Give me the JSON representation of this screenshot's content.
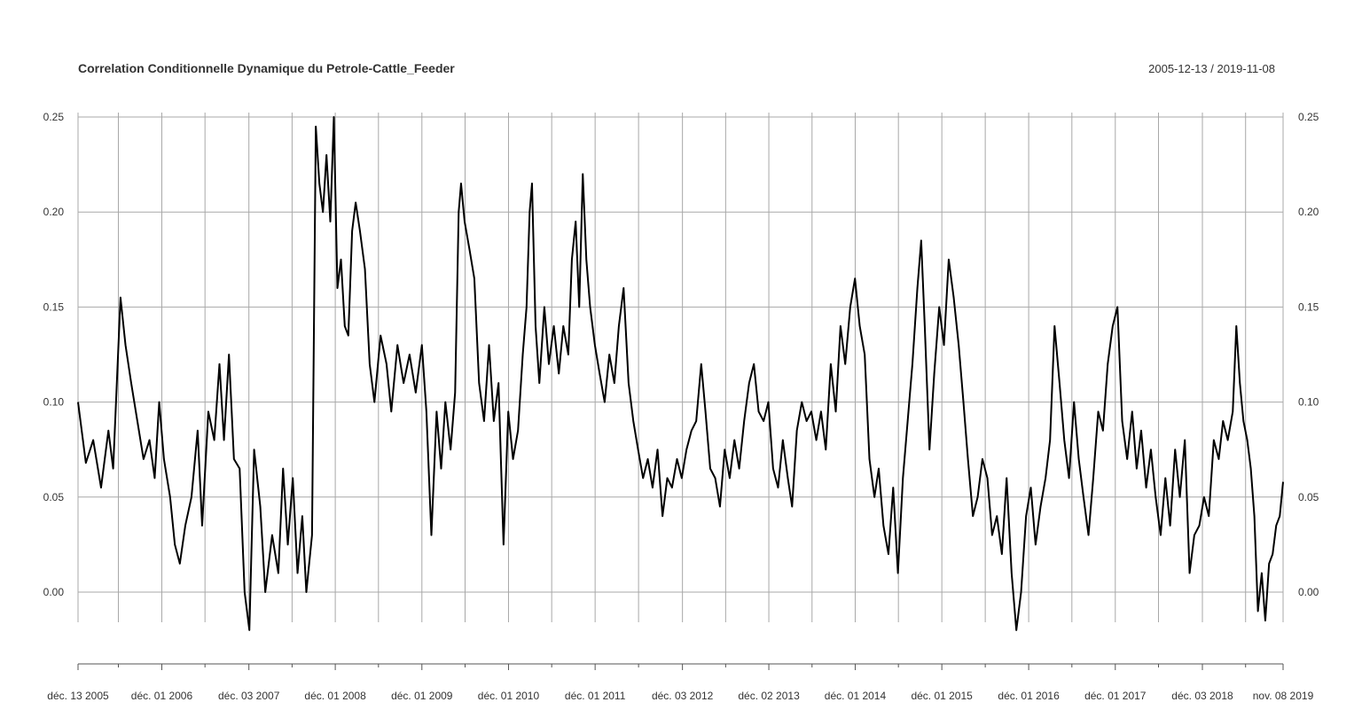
{
  "chart_data": {
    "type": "line",
    "title": "Correlation Conditionnelle Dynamique du Petrole-Cattle_Feeder",
    "date_range": "2005-12-13 / 2019-11-08",
    "xlabel": "",
    "ylabel": "",
    "x_range": [
      "2005-12-13",
      "2019-11-08"
    ],
    "ylim": [
      -0.02,
      0.25
    ],
    "y_ticks": [
      "0.25",
      "0.20",
      "0.15",
      "0.10",
      "0.05",
      "0.00"
    ],
    "y_tick_values": [
      0.25,
      0.2,
      0.15,
      0.1,
      0.05,
      0.0
    ],
    "x_ticks": [
      {
        "date": "2005-12-13",
        "label": "déc. 13 2005"
      },
      {
        "date": "2006-12-01",
        "label": "déc. 01 2006"
      },
      {
        "date": "2007-12-03",
        "label": "déc. 03 2007"
      },
      {
        "date": "2008-12-01",
        "label": "déc. 01 2008"
      },
      {
        "date": "2009-12-01",
        "label": "déc. 01 2009"
      },
      {
        "date": "2010-12-01",
        "label": "déc. 01 2010"
      },
      {
        "date": "2011-12-01",
        "label": "déc. 01 2011"
      },
      {
        "date": "2012-12-03",
        "label": "déc. 03 2012"
      },
      {
        "date": "2013-12-02",
        "label": "déc. 02 2013"
      },
      {
        "date": "2014-12-01",
        "label": "déc. 01 2014"
      },
      {
        "date": "2015-12-01",
        "label": "déc. 01 2015"
      },
      {
        "date": "2016-12-01",
        "label": "déc. 01 2016"
      },
      {
        "date": "2017-12-01",
        "label": "déc. 01 2017"
      },
      {
        "date": "2018-12-03",
        "label": "déc. 03 2018"
      },
      {
        "date": "2019-11-08",
        "label": "nov. 08 2019"
      }
    ],
    "minor_x_gridlines": [
      "2006-06-01",
      "2007-06-01",
      "2008-06-02",
      "2009-06-01",
      "2010-06-01",
      "2011-06-01",
      "2012-06-01",
      "2013-06-03",
      "2014-06-02",
      "2015-06-01",
      "2016-06-01",
      "2017-06-01",
      "2018-06-01",
      "2019-06-03"
    ],
    "grid": true,
    "line_color": "#000000",
    "series": [
      {
        "points": [
          [
            "2005-12-13",
            0.1
          ],
          [
            "2006-01-15",
            0.068
          ],
          [
            "2006-02-15",
            0.08
          ],
          [
            "2006-03-20",
            0.055
          ],
          [
            "2006-04-20",
            0.085
          ],
          [
            "2006-05-10",
            0.065
          ],
          [
            "2006-06-10",
            0.155
          ],
          [
            "2006-07-01",
            0.13
          ],
          [
            "2006-07-25",
            0.11
          ],
          [
            "2006-08-20",
            0.09
          ],
          [
            "2006-09-15",
            0.07
          ],
          [
            "2006-10-10",
            0.08
          ],
          [
            "2006-11-01",
            0.06
          ],
          [
            "2006-11-20",
            0.1
          ],
          [
            "2006-12-10",
            0.07
          ],
          [
            "2007-01-05",
            0.05
          ],
          [
            "2007-01-25",
            0.025
          ],
          [
            "2007-02-15",
            0.015
          ],
          [
            "2007-03-10",
            0.035
          ],
          [
            "2007-04-05",
            0.05
          ],
          [
            "2007-05-01",
            0.085
          ],
          [
            "2007-05-20",
            0.035
          ],
          [
            "2007-06-15",
            0.095
          ],
          [
            "2007-07-10",
            0.08
          ],
          [
            "2007-08-01",
            0.12
          ],
          [
            "2007-08-20",
            0.08
          ],
          [
            "2007-09-10",
            0.125
          ],
          [
            "2007-10-01",
            0.07
          ],
          [
            "2007-10-25",
            0.065
          ],
          [
            "2007-11-15",
            0.0
          ],
          [
            "2007-12-05",
            -0.02
          ],
          [
            "2007-12-25",
            0.075
          ],
          [
            "2008-01-20",
            0.045
          ],
          [
            "2008-02-10",
            0.0
          ],
          [
            "2008-03-10",
            0.03
          ],
          [
            "2008-04-05",
            0.01
          ],
          [
            "2008-04-25",
            0.065
          ],
          [
            "2008-05-15",
            0.025
          ],
          [
            "2008-06-05",
            0.06
          ],
          [
            "2008-06-25",
            0.01
          ],
          [
            "2008-07-15",
            0.04
          ],
          [
            "2008-08-01",
            0.0
          ],
          [
            "2008-08-25",
            0.03
          ],
          [
            "2008-09-10",
            0.245
          ],
          [
            "2008-09-25",
            0.215
          ],
          [
            "2008-10-10",
            0.2
          ],
          [
            "2008-10-25",
            0.23
          ],
          [
            "2008-11-10",
            0.195
          ],
          [
            "2008-11-25",
            0.25
          ],
          [
            "2008-12-10",
            0.16
          ],
          [
            "2008-12-25",
            0.175
          ],
          [
            "2009-01-10",
            0.14
          ],
          [
            "2009-01-25",
            0.135
          ],
          [
            "2009-02-10",
            0.19
          ],
          [
            "2009-02-25",
            0.205
          ],
          [
            "2009-03-15",
            0.19
          ],
          [
            "2009-04-05",
            0.17
          ],
          [
            "2009-04-25",
            0.12
          ],
          [
            "2009-05-15",
            0.1
          ],
          [
            "2009-06-10",
            0.135
          ],
          [
            "2009-07-05",
            0.12
          ],
          [
            "2009-07-25",
            0.095
          ],
          [
            "2009-08-20",
            0.13
          ],
          [
            "2009-09-15",
            0.11
          ],
          [
            "2009-10-10",
            0.125
          ],
          [
            "2009-11-05",
            0.105
          ],
          [
            "2009-12-01",
            0.13
          ],
          [
            "2009-12-20",
            0.095
          ],
          [
            "2010-01-10",
            0.03
          ],
          [
            "2010-02-01",
            0.095
          ],
          [
            "2010-02-20",
            0.065
          ],
          [
            "2010-03-10",
            0.1
          ],
          [
            "2010-04-01",
            0.075
          ],
          [
            "2010-04-20",
            0.105
          ],
          [
            "2010-05-05",
            0.2
          ],
          [
            "2010-05-15",
            0.215
          ],
          [
            "2010-05-30",
            0.195
          ],
          [
            "2010-06-20",
            0.18
          ],
          [
            "2010-07-10",
            0.165
          ],
          [
            "2010-07-30",
            0.11
          ],
          [
            "2010-08-20",
            0.09
          ],
          [
            "2010-09-10",
            0.13
          ],
          [
            "2010-09-30",
            0.09
          ],
          [
            "2010-10-20",
            0.11
          ],
          [
            "2010-11-10",
            0.025
          ],
          [
            "2010-11-30",
            0.095
          ],
          [
            "2010-12-20",
            0.07
          ],
          [
            "2011-01-10",
            0.085
          ],
          [
            "2011-01-30",
            0.125
          ],
          [
            "2011-02-15",
            0.15
          ],
          [
            "2011-02-28",
            0.2
          ],
          [
            "2011-03-10",
            0.215
          ],
          [
            "2011-03-25",
            0.14
          ],
          [
            "2011-04-10",
            0.11
          ],
          [
            "2011-05-01",
            0.15
          ],
          [
            "2011-05-20",
            0.12
          ],
          [
            "2011-06-10",
            0.14
          ],
          [
            "2011-07-01",
            0.115
          ],
          [
            "2011-07-20",
            0.14
          ],
          [
            "2011-08-10",
            0.125
          ],
          [
            "2011-08-25",
            0.175
          ],
          [
            "2011-09-10",
            0.195
          ],
          [
            "2011-09-25",
            0.15
          ],
          [
            "2011-10-10",
            0.22
          ],
          [
            "2011-10-25",
            0.175
          ],
          [
            "2011-11-10",
            0.15
          ],
          [
            "2011-11-30",
            0.13
          ],
          [
            "2011-12-20",
            0.115
          ],
          [
            "2012-01-10",
            0.1
          ],
          [
            "2012-01-30",
            0.125
          ],
          [
            "2012-02-20",
            0.11
          ],
          [
            "2012-03-10",
            0.14
          ],
          [
            "2012-03-30",
            0.16
          ],
          [
            "2012-04-20",
            0.11
          ],
          [
            "2012-05-10",
            0.09
          ],
          [
            "2012-05-30",
            0.075
          ],
          [
            "2012-06-20",
            0.06
          ],
          [
            "2012-07-10",
            0.07
          ],
          [
            "2012-07-30",
            0.055
          ],
          [
            "2012-08-20",
            0.075
          ],
          [
            "2012-09-10",
            0.04
          ],
          [
            "2012-09-30",
            0.06
          ],
          [
            "2012-10-20",
            0.055
          ],
          [
            "2012-11-10",
            0.07
          ],
          [
            "2012-11-30",
            0.06
          ],
          [
            "2012-12-20",
            0.075
          ],
          [
            "2013-01-10",
            0.085
          ],
          [
            "2013-01-30",
            0.09
          ],
          [
            "2013-02-20",
            0.12
          ],
          [
            "2013-03-10",
            0.095
          ],
          [
            "2013-03-30",
            0.065
          ],
          [
            "2013-04-20",
            0.06
          ],
          [
            "2013-05-10",
            0.045
          ],
          [
            "2013-05-30",
            0.075
          ],
          [
            "2013-06-20",
            0.06
          ],
          [
            "2013-07-10",
            0.08
          ],
          [
            "2013-07-30",
            0.065
          ],
          [
            "2013-08-20",
            0.09
          ],
          [
            "2013-09-10",
            0.11
          ],
          [
            "2013-09-30",
            0.12
          ],
          [
            "2013-10-20",
            0.095
          ],
          [
            "2013-11-10",
            0.09
          ],
          [
            "2013-11-30",
            0.1
          ],
          [
            "2013-12-20",
            0.065
          ],
          [
            "2014-01-10",
            0.055
          ],
          [
            "2014-01-30",
            0.08
          ],
          [
            "2014-02-20",
            0.06
          ],
          [
            "2014-03-10",
            0.045
          ],
          [
            "2014-03-30",
            0.085
          ],
          [
            "2014-04-20",
            0.1
          ],
          [
            "2014-05-10",
            0.09
          ],
          [
            "2014-05-30",
            0.095
          ],
          [
            "2014-06-20",
            0.08
          ],
          [
            "2014-07-10",
            0.095
          ],
          [
            "2014-07-30",
            0.075
          ],
          [
            "2014-08-20",
            0.12
          ],
          [
            "2014-09-10",
            0.095
          ],
          [
            "2014-09-30",
            0.14
          ],
          [
            "2014-10-20",
            0.12
          ],
          [
            "2014-11-10",
            0.15
          ],
          [
            "2014-11-30",
            0.165
          ],
          [
            "2014-12-20",
            0.14
          ],
          [
            "2015-01-10",
            0.125
          ],
          [
            "2015-01-30",
            0.07
          ],
          [
            "2015-02-20",
            0.05
          ],
          [
            "2015-03-10",
            0.065
          ],
          [
            "2015-03-30",
            0.035
          ],
          [
            "2015-04-20",
            0.02
          ],
          [
            "2015-05-10",
            0.055
          ],
          [
            "2015-05-30",
            0.01
          ],
          [
            "2015-06-20",
            0.06
          ],
          [
            "2015-07-10",
            0.09
          ],
          [
            "2015-07-30",
            0.12
          ],
          [
            "2015-08-20",
            0.16
          ],
          [
            "2015-09-05",
            0.185
          ],
          [
            "2015-09-20",
            0.14
          ],
          [
            "2015-10-10",
            0.075
          ],
          [
            "2015-10-30",
            0.115
          ],
          [
            "2015-11-20",
            0.15
          ],
          [
            "2015-12-10",
            0.13
          ],
          [
            "2015-12-30",
            0.175
          ],
          [
            "2016-01-20",
            0.155
          ],
          [
            "2016-02-10",
            0.13
          ],
          [
            "2016-03-01",
            0.1
          ],
          [
            "2016-03-20",
            0.07
          ],
          [
            "2016-04-10",
            0.04
          ],
          [
            "2016-04-30",
            0.05
          ],
          [
            "2016-05-20",
            0.07
          ],
          [
            "2016-06-10",
            0.06
          ],
          [
            "2016-06-30",
            0.03
          ],
          [
            "2016-07-20",
            0.04
          ],
          [
            "2016-08-10",
            0.02
          ],
          [
            "2016-08-30",
            0.06
          ],
          [
            "2016-09-20",
            0.01
          ],
          [
            "2016-10-10",
            -0.02
          ],
          [
            "2016-10-30",
            0.0
          ],
          [
            "2016-11-20",
            0.04
          ],
          [
            "2016-12-10",
            0.055
          ],
          [
            "2016-12-30",
            0.025
          ],
          [
            "2017-01-20",
            0.045
          ],
          [
            "2017-02-10",
            0.06
          ],
          [
            "2017-03-01",
            0.08
          ],
          [
            "2017-03-20",
            0.14
          ],
          [
            "2017-04-10",
            0.11
          ],
          [
            "2017-04-30",
            0.08
          ],
          [
            "2017-05-20",
            0.06
          ],
          [
            "2017-06-10",
            0.1
          ],
          [
            "2017-06-30",
            0.07
          ],
          [
            "2017-07-20",
            0.05
          ],
          [
            "2017-08-10",
            0.03
          ],
          [
            "2017-08-30",
            0.06
          ],
          [
            "2017-09-20",
            0.095
          ],
          [
            "2017-10-10",
            0.085
          ],
          [
            "2017-10-30",
            0.12
          ],
          [
            "2017-11-20",
            0.14
          ],
          [
            "2017-12-10",
            0.15
          ],
          [
            "2017-12-30",
            0.09
          ],
          [
            "2018-01-20",
            0.07
          ],
          [
            "2018-02-10",
            0.095
          ],
          [
            "2018-03-01",
            0.065
          ],
          [
            "2018-03-20",
            0.085
          ],
          [
            "2018-04-10",
            0.055
          ],
          [
            "2018-04-30",
            0.075
          ],
          [
            "2018-05-20",
            0.05
          ],
          [
            "2018-06-10",
            0.03
          ],
          [
            "2018-06-30",
            0.06
          ],
          [
            "2018-07-20",
            0.035
          ],
          [
            "2018-08-10",
            0.075
          ],
          [
            "2018-08-30",
            0.05
          ],
          [
            "2018-09-20",
            0.08
          ],
          [
            "2018-10-10",
            0.01
          ],
          [
            "2018-10-30",
            0.03
          ],
          [
            "2018-11-20",
            0.035
          ],
          [
            "2018-12-10",
            0.05
          ],
          [
            "2018-12-30",
            0.04
          ],
          [
            "2019-01-20",
            0.08
          ],
          [
            "2019-02-10",
            0.07
          ],
          [
            "2019-02-28",
            0.09
          ],
          [
            "2019-03-20",
            0.08
          ],
          [
            "2019-04-10",
            0.095
          ],
          [
            "2019-04-25",
            0.14
          ],
          [
            "2019-05-10",
            0.11
          ],
          [
            "2019-05-25",
            0.09
          ],
          [
            "2019-06-10",
            0.08
          ],
          [
            "2019-06-25",
            0.065
          ],
          [
            "2019-07-10",
            0.04
          ],
          [
            "2019-07-25",
            -0.01
          ],
          [
            "2019-08-10",
            0.01
          ],
          [
            "2019-08-25",
            -0.015
          ],
          [
            "2019-09-10",
            0.015
          ],
          [
            "2019-09-25",
            0.02
          ],
          [
            "2019-10-10",
            0.035
          ],
          [
            "2019-10-25",
            0.04
          ],
          [
            "2019-11-08",
            0.058
          ]
        ]
      }
    ]
  }
}
